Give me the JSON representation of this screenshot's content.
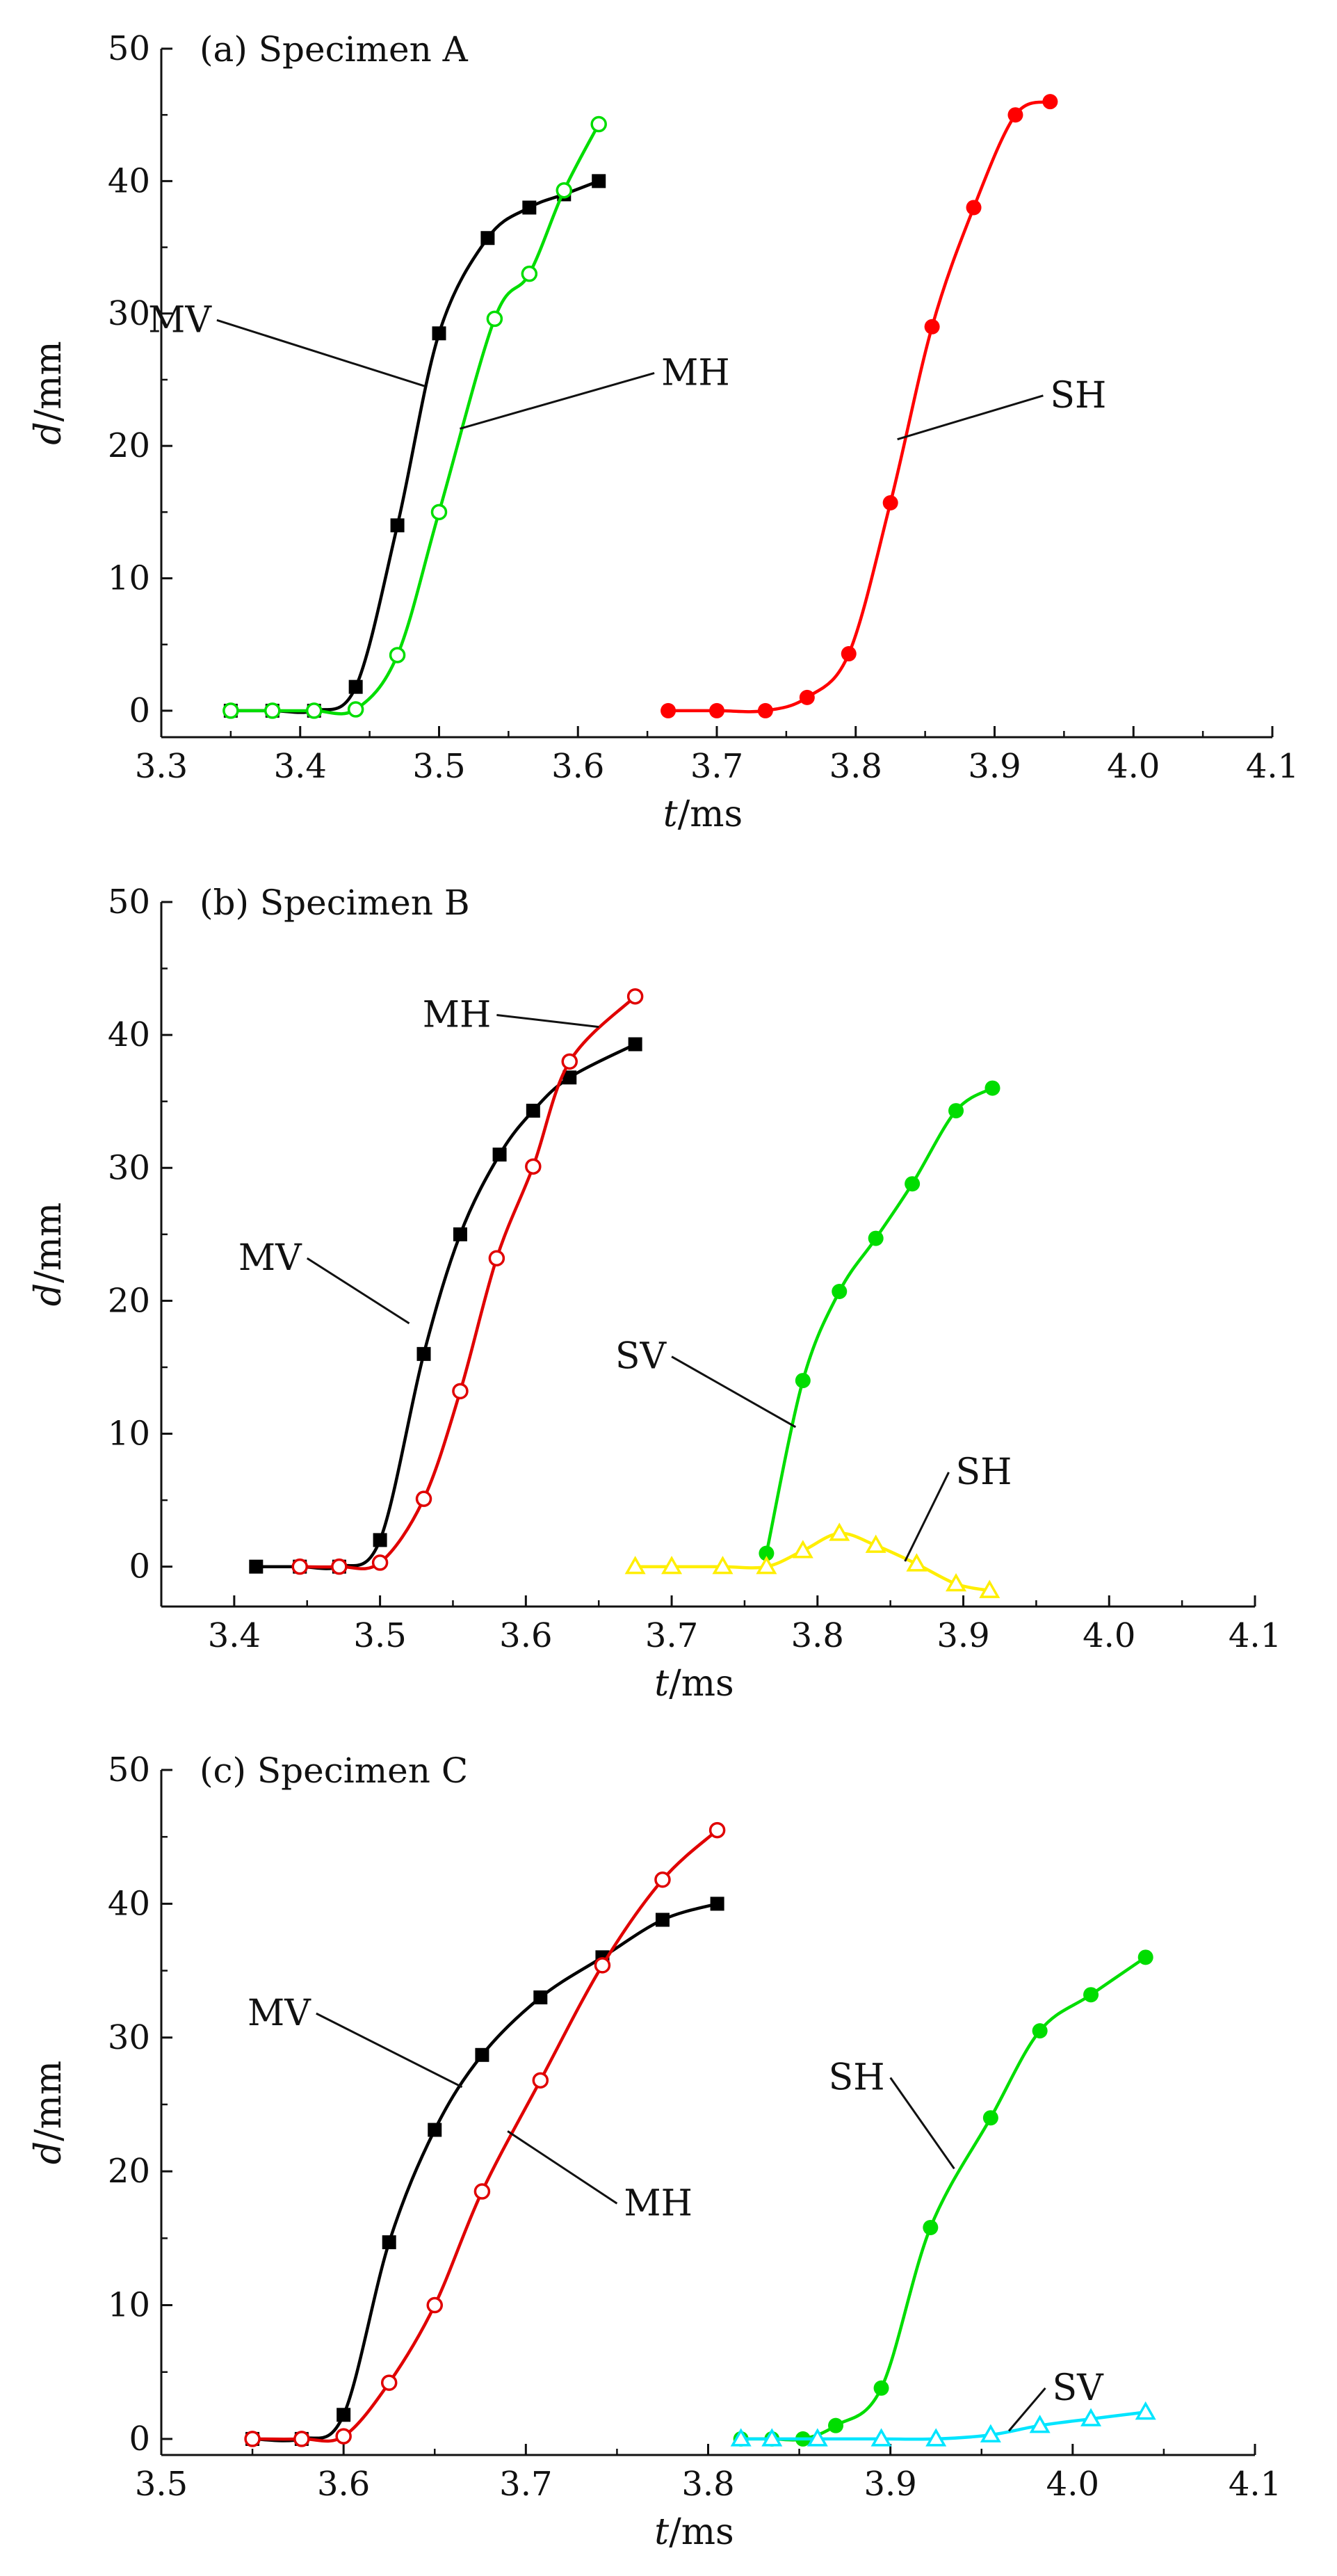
{
  "chart_data": [
    {
      "type": "line",
      "title": "(a) Specimen A",
      "xlabel_italic": "t",
      "xlabel_unit": "/ms",
      "ylabel_italic": "d",
      "ylabel_unit": "/mm",
      "xlim": [
        3.3,
        4.1
      ],
      "ylim": [
        -2,
        50
      ],
      "xticks": [
        3.3,
        3.4,
        3.5,
        3.6,
        3.7,
        3.8,
        3.9,
        4.0,
        4.1
      ],
      "xtick_labels": [
        "3.3",
        "3.4",
        "3.5",
        "3.6",
        "3.7",
        "3.8",
        "3.9",
        "4.0",
        "4.1"
      ],
      "yticks": [
        0,
        10,
        20,
        30,
        40,
        50
      ],
      "ytick_labels": [
        "0",
        "10",
        "20",
        "30",
        "40",
        "50"
      ],
      "series": [
        {
          "name": "MV",
          "color": "#000000",
          "marker": "square-filled",
          "x": [
            3.35,
            3.38,
            3.41,
            3.44,
            3.47,
            3.5,
            3.535,
            3.565,
            3.59,
            3.615
          ],
          "y": [
            0,
            0,
            0,
            1.8,
            14,
            28.5,
            35.7,
            38,
            39,
            40
          ]
        },
        {
          "name": "MH",
          "color": "#00dd00",
          "marker": "circle-open",
          "x": [
            3.35,
            3.38,
            3.41,
            3.44,
            3.47,
            3.5,
            3.54,
            3.565,
            3.59,
            3.615
          ],
          "y": [
            0,
            0,
            0,
            0.1,
            4.2,
            15,
            29.6,
            33,
            39.3,
            44.3
          ]
        },
        {
          "name": "SH",
          "color": "#ff0000",
          "marker": "circle-filled",
          "x": [
            3.665,
            3.7,
            3.735,
            3.765,
            3.795,
            3.825,
            3.855,
            3.885,
            3.915,
            3.94
          ],
          "y": [
            0,
            0,
            0,
            1,
            4.3,
            15.7,
            29,
            38,
            45,
            46
          ]
        }
      ],
      "annotations": [
        {
          "text": "MV",
          "series": "MV",
          "at": [
            3.49,
            24.5
          ],
          "label_at": [
            3.34,
            29.5
          ]
        },
        {
          "text": "MH",
          "series": "MH",
          "at": [
            3.515,
            21.3
          ],
          "label_at": [
            3.655,
            25.5
          ]
        },
        {
          "text": "SH",
          "series": "SH",
          "at": [
            3.83,
            20.5
          ],
          "label_at": [
            3.935,
            23.8
          ]
        }
      ]
    },
    {
      "type": "line",
      "title": "(b) Specimen B",
      "xlabel_italic": "t",
      "xlabel_unit": "/ms",
      "ylabel_italic": "d",
      "ylabel_unit": "/mm",
      "xlim": [
        3.35,
        4.1
      ],
      "ylim": [
        -3,
        50
      ],
      "xticks": [
        3.4,
        3.5,
        3.6,
        3.7,
        3.8,
        3.9,
        4.0,
        4.1
      ],
      "xtick_labels": [
        "3.4",
        "3.5",
        "3.6",
        "3.7",
        "3.8",
        "3.9",
        "4.0",
        "4.1"
      ],
      "yticks": [
        0,
        10,
        20,
        30,
        40,
        50
      ],
      "ytick_labels": [
        "0",
        "10",
        "20",
        "30",
        "40",
        "50"
      ],
      "series": [
        {
          "name": "MV",
          "color": "#000000",
          "marker": "square-filled",
          "x": [
            3.415,
            3.445,
            3.472,
            3.5,
            3.53,
            3.555,
            3.582,
            3.605,
            3.63,
            3.675
          ],
          "y": [
            0,
            0,
            0,
            2,
            16,
            25,
            31,
            34.3,
            36.8,
            39.3
          ]
        },
        {
          "name": "MH",
          "color": "#e00000",
          "marker": "circle-open",
          "x": [
            3.445,
            3.472,
            3.5,
            3.53,
            3.555,
            3.58,
            3.605,
            3.63,
            3.675
          ],
          "y": [
            0,
            0,
            0.3,
            5.1,
            13.2,
            23.2,
            30.1,
            38,
            42.9
          ]
        },
        {
          "name": "SV",
          "color": "#00dd00",
          "marker": "circle-filled",
          "x": [
            3.765,
            3.79,
            3.815,
            3.84,
            3.865,
            3.895,
            3.92
          ],
          "y": [
            1,
            14,
            20.7,
            24.7,
            28.8,
            34.3,
            36
          ]
        },
        {
          "name": "SH",
          "color": "#ffee00",
          "marker": "triangle-open",
          "x": [
            3.675,
            3.7,
            3.735,
            3.765,
            3.79,
            3.815,
            3.84,
            3.868,
            3.895,
            3.918
          ],
          "y": [
            0,
            0,
            0,
            0,
            1.2,
            2.5,
            1.6,
            0.2,
            -1.3,
            -1.8
          ]
        }
      ],
      "annotations": [
        {
          "text": "MH",
          "series": "MH",
          "at": [
            3.65,
            40.6
          ],
          "label_at": [
            3.58,
            41.5
          ]
        },
        {
          "text": "MV",
          "series": "MV",
          "at": [
            3.52,
            18.3
          ],
          "label_at": [
            3.45,
            23.2
          ]
        },
        {
          "text": "SV",
          "series": "SV",
          "at": [
            3.785,
            10.5
          ],
          "label_at": [
            3.7,
            15.8
          ]
        },
        {
          "text": "SH",
          "series": "SH",
          "at": [
            3.86,
            0.4
          ],
          "label_at": [
            3.89,
            7.1
          ]
        }
      ]
    },
    {
      "type": "line",
      "title": "(c) Specimen C",
      "xlabel_italic": "t",
      "xlabel_unit": "/ms",
      "ylabel_italic": "d",
      "ylabel_unit": "/mm",
      "xlim": [
        3.5,
        4.1
      ],
      "ylim": [
        -1.2,
        50
      ],
      "xticks": [
        3.5,
        3.6,
        3.7,
        3.8,
        3.9,
        4.0,
        4.1
      ],
      "xtick_labels": [
        "3.5",
        "3.6",
        "3.7",
        "3.8",
        "3.9",
        "4.0",
        "4.1"
      ],
      "yticks": [
        0,
        10,
        20,
        30,
        40,
        50
      ],
      "ytick_labels": [
        "0",
        "10",
        "20",
        "30",
        "40",
        "50"
      ],
      "series": [
        {
          "name": "MV",
          "color": "#000000",
          "marker": "square-filled",
          "x": [
            3.55,
            3.577,
            3.6,
            3.625,
            3.65,
            3.676,
            3.708,
            3.742,
            3.775,
            3.805
          ],
          "y": [
            0,
            0,
            1.8,
            14.7,
            23.1,
            28.7,
            33,
            36,
            38.8,
            40
          ]
        },
        {
          "name": "MH",
          "color": "#e00000",
          "marker": "circle-open",
          "x": [
            3.55,
            3.577,
            3.6,
            3.625,
            3.65,
            3.676,
            3.708,
            3.742,
            3.775,
            3.805
          ],
          "y": [
            0,
            0,
            0.2,
            4.2,
            10,
            18.5,
            26.8,
            35.4,
            41.8,
            45.5
          ]
        },
        {
          "name": "SH",
          "color": "#00dd00",
          "marker": "circle-filled",
          "x": [
            3.818,
            3.835,
            3.852,
            3.87,
            3.895,
            3.922,
            3.955,
            3.982,
            4.01,
            4.04
          ],
          "y": [
            0,
            0,
            0,
            1,
            3.8,
            15.8,
            24,
            30.5,
            33.2,
            36
          ]
        },
        {
          "name": "SV",
          "color": "#00e5ff",
          "marker": "triangle-open",
          "x": [
            3.818,
            3.835,
            3.86,
            3.895,
            3.925,
            3.955,
            3.982,
            4.01,
            4.04
          ],
          "y": [
            0,
            0,
            0,
            0,
            0,
            0.3,
            1,
            1.5,
            2
          ]
        }
      ],
      "annotations": [
        {
          "text": "MV",
          "series": "MV",
          "at": [
            3.665,
            26.3
          ],
          "label_at": [
            3.585,
            31.8
          ]
        },
        {
          "text": "MH",
          "series": "MH",
          "at": [
            3.69,
            23
          ],
          "label_at": [
            3.75,
            17.6
          ]
        },
        {
          "text": "SH",
          "series": "SH",
          "at": [
            3.935,
            20.2
          ],
          "label_at": [
            3.9,
            27
          ]
        },
        {
          "text": "SV",
          "series": "SV",
          "at": [
            3.965,
            0.6
          ],
          "label_at": [
            3.985,
            3.8
          ]
        }
      ]
    }
  ]
}
